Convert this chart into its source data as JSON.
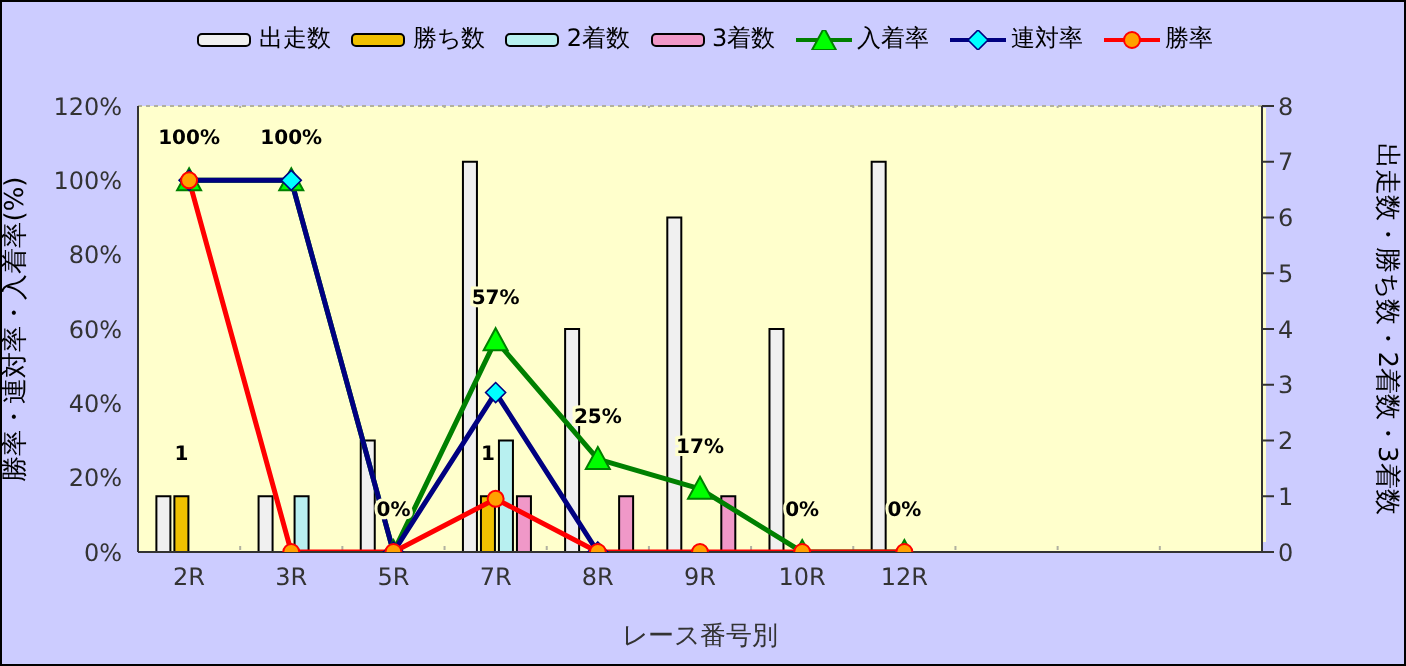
{
  "chart_data": {
    "type": "bar",
    "xlabel": "レース番号別",
    "ylabel": "勝率・連対率・入着率(%)",
    "y2label": "出走数・勝ち数・2着数・3着数",
    "categories": [
      "2R",
      "3R",
      "5R",
      "7R",
      "8R",
      "9R",
      "10R",
      "12R",
      null,
      null,
      null
    ],
    "series": [
      {
        "name": "出走数",
        "axis": "y2",
        "color": "#f0f0f0",
        "values": [
          1,
          1,
          2,
          7,
          4,
          6,
          4,
          7,
          null,
          null,
          null
        ]
      },
      {
        "name": "勝ち数",
        "axis": "y2",
        "color": "#f0c000",
        "values": [
          1,
          0,
          0,
          1,
          0,
          0,
          0,
          0,
          null,
          null,
          null
        ],
        "value_labels": [
          "1",
          null,
          null,
          "1",
          null,
          null,
          null,
          null,
          null,
          null,
          null
        ]
      },
      {
        "name": "2着数",
        "axis": "y2",
        "color": "#b8f0f0",
        "values": [
          0,
          1,
          0,
          2,
          0,
          0,
          0,
          0,
          null,
          null,
          null
        ]
      },
      {
        "name": "3着数",
        "axis": "y2",
        "color": "#f098c8",
        "values": [
          0,
          0,
          0,
          1,
          1,
          1,
          0,
          0,
          null,
          null,
          null
        ]
      },
      {
        "name": "入着率",
        "type": "line",
        "color": "#008000",
        "marker": "triangle",
        "values": [
          100,
          100,
          0,
          57,
          25,
          17,
          0,
          0,
          null,
          null,
          null
        ],
        "value_labels": [
          "100%",
          "100%",
          "0%",
          "57%",
          "25%",
          "17%",
          "0%",
          "0%",
          null,
          null,
          null
        ]
      },
      {
        "name": "連対率",
        "type": "line",
        "color": "#000080",
        "marker": "diamond",
        "values": [
          100,
          100,
          0,
          42.9,
          0,
          null,
          null,
          null,
          null,
          null,
          null
        ]
      },
      {
        "name": "勝率",
        "type": "line",
        "color": "#ff0000",
        "marker": "circle",
        "values": [
          100,
          0,
          0,
          14.3,
          0,
          0,
          0,
          0,
          null,
          null,
          null
        ]
      }
    ],
    "ylim": [
      0,
      120
    ],
    "yticks": [
      {
        "value": 0,
        "label": "0%"
      },
      {
        "value": 20,
        "label": "20%"
      },
      {
        "value": 40,
        "label": "40%"
      },
      {
        "value": 60,
        "label": "60%"
      },
      {
        "value": 80,
        "label": "80%"
      },
      {
        "value": 100,
        "label": "100%"
      },
      {
        "value": 120,
        "label": "120%"
      }
    ],
    "y2lim": [
      0,
      8
    ],
    "y2ticks": [
      0,
      1,
      2,
      3,
      4,
      5,
      6,
      7,
      8
    ],
    "grid": true,
    "legend": "top"
  }
}
